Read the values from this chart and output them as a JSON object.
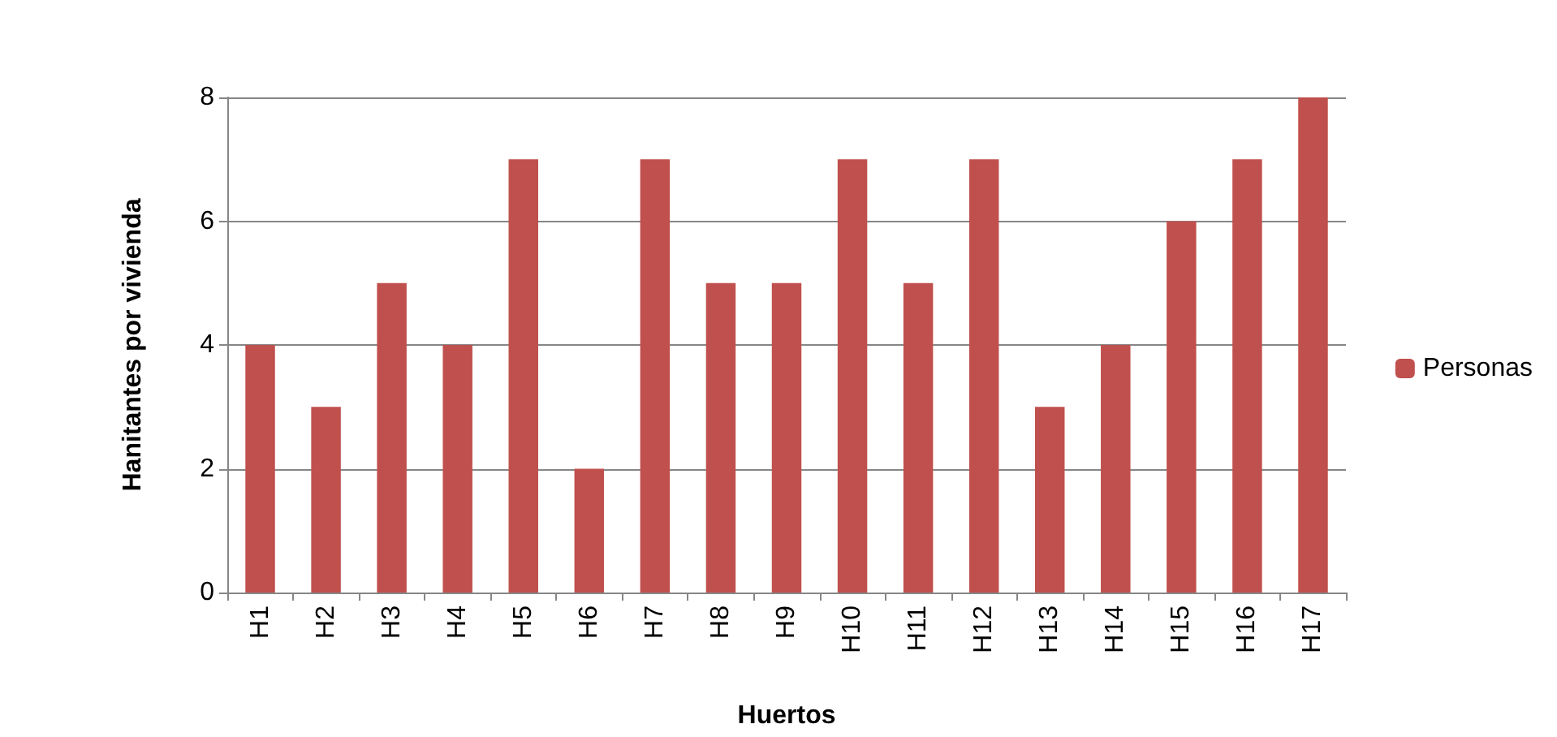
{
  "chart_data": {
    "type": "bar",
    "xlabel": "Huertos",
    "ylabel": "Hanitantes por vivienda",
    "categories": [
      "H1",
      "H2",
      "H3",
      "H4",
      "H5",
      "H6",
      "H7",
      "H8",
      "H9",
      "H10",
      "H11",
      "H12",
      "H13",
      "H14",
      "H15",
      "H16",
      "H17"
    ],
    "series": [
      {
        "name": "Personas",
        "color": "#c0504d",
        "values": [
          4,
          3,
          5,
          4,
          7,
          2,
          7,
          5,
          5,
          7,
          5,
          7,
          3,
          4,
          6,
          7,
          8
        ]
      }
    ],
    "ylim": [
      0,
      8
    ],
    "yticks": [
      0,
      2,
      4,
      6,
      8
    ],
    "grid": "y",
    "legend": "right"
  }
}
